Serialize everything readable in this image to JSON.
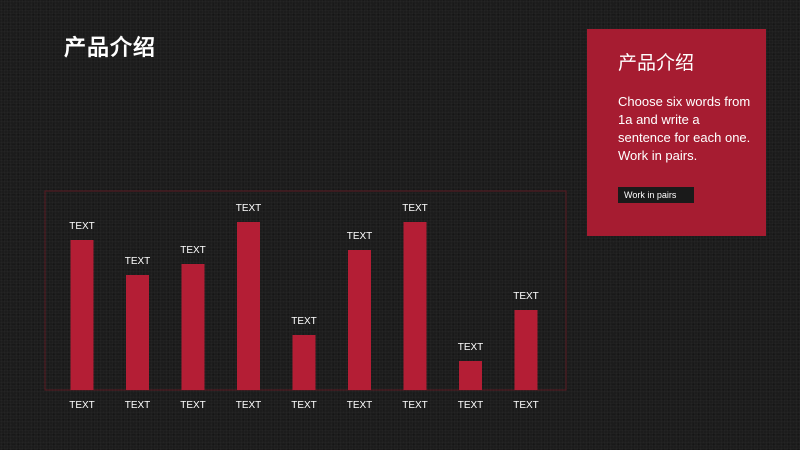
{
  "slide": {
    "title": "产品介绍"
  },
  "card": {
    "title": "产品介绍",
    "body": "Choose six words from 1a and write a sentence for each one. Work in pairs.",
    "button_label": "Work in pairs"
  },
  "colors": {
    "background": "#1c1c1c",
    "accent": "#a61c31",
    "bar": "#b41e35",
    "frame": "#5a1a22",
    "text": "#ffffff"
  },
  "chart_data": {
    "type": "bar",
    "categories": [
      "TEXT",
      "TEXT",
      "TEXT",
      "TEXT",
      "TEXT",
      "TEXT",
      "TEXT",
      "TEXT",
      "TEXT"
    ],
    "values": [
      150,
      115,
      126,
      168,
      55,
      140,
      168,
      29,
      80
    ],
    "data_labels": [
      "TEXT",
      "TEXT",
      "TEXT",
      "TEXT",
      "TEXT",
      "TEXT",
      "TEXT",
      "TEXT",
      "TEXT"
    ],
    "ylim": [
      0,
      200
    ],
    "grid": false,
    "legend": "none"
  }
}
